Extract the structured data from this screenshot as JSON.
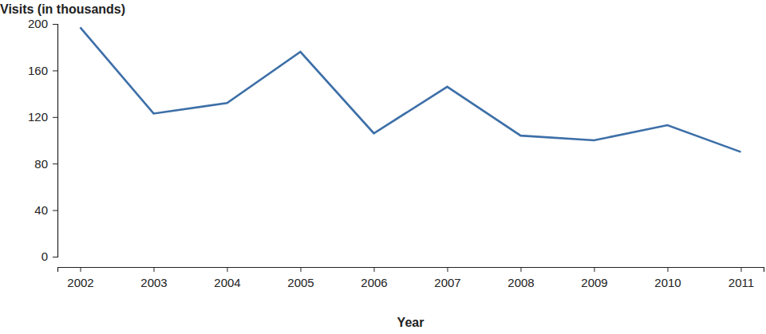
{
  "chart_data": {
    "type": "line",
    "y_label": "Visits (in thousands)",
    "x_label": "Year",
    "categories": [
      "2002",
      "2003",
      "2004",
      "2005",
      "2006",
      "2007",
      "2008",
      "2009",
      "2010",
      "2011"
    ],
    "values": [
      197,
      123,
      132,
      176,
      106,
      146,
      104,
      100,
      113,
      90
    ],
    "color": "#3d6fa8",
    "ylim": [
      0,
      200
    ],
    "yticks": [
      0,
      40,
      80,
      120,
      160,
      200
    ],
    "grid": false
  }
}
